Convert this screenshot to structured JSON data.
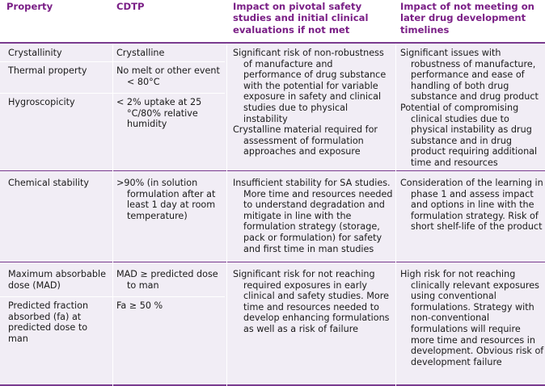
{
  "table": {
    "headers": {
      "property": "Property",
      "cdtp": "CDTP",
      "impact_safety": "Impact on pivotal safety studies and initial clinical evaluations if not met",
      "impact_later": "Impact of not meeting on later drug development timelines"
    },
    "group1": {
      "crystallinity": {
        "property": "Crystallinity",
        "cdtp": "Crystalline"
      },
      "thermal": {
        "property": "Thermal property",
        "cdtp": "No melt or other event < 80°C"
      },
      "hygro": {
        "property": "Hygroscopicity",
        "cdtp": "< 2% uptake at 25 °C/80% relative humidity"
      },
      "impact_safety": [
        "Significant risk of non-robustness of manufacture and performance of drug substance with the potential for variable exposure in safety and clinical studies due to physical instability",
        "Crystalline material required for assessment of formulation approaches and exposure"
      ],
      "impact_later": [
        "Significant issues with robustness of manufacture, performance and ease of handling of both drug substance and drug product",
        "Potential of compromising clinical studies due to physical instability as drug substance and in drug product requiring additional time and resources"
      ]
    },
    "group2": {
      "property": "Chemical stability",
      "cdtp": ">90% (in solution formulation after at least 1 day at room temperature)",
      "impact_safety": "Insufficient stability for SA studies. More time and resources needed to understand degradation and mitigate in line with the formulation strategy (storage, pack or formulation) for safety and first time in man studies",
      "impact_later": "Consideration of the learning in phase 1 and assess impact and options in line with the formulation strategy. Risk of short shelf-life of the product"
    },
    "group3": {
      "mad": {
        "property": "Maximum absorbable dose (MAD)",
        "cdtp": "MAD ≥ predicted dose to man"
      },
      "fa": {
        "property": "Predicted fraction absorbed (fa) at predicted dose to man",
        "cdtp": "Fa ≥ 50 %"
      },
      "impact_safety": "Significant risk for not reaching required exposures in early clinical and safety studies. More time and resources needed to develop enhancing formulations as well as a risk of failure",
      "impact_later": "High risk for not reaching clinically relevant exposures using conventional formulations. Strategy with non-conventional formulations will require more time and resources in development. Obvious risk of development failure"
    }
  }
}
